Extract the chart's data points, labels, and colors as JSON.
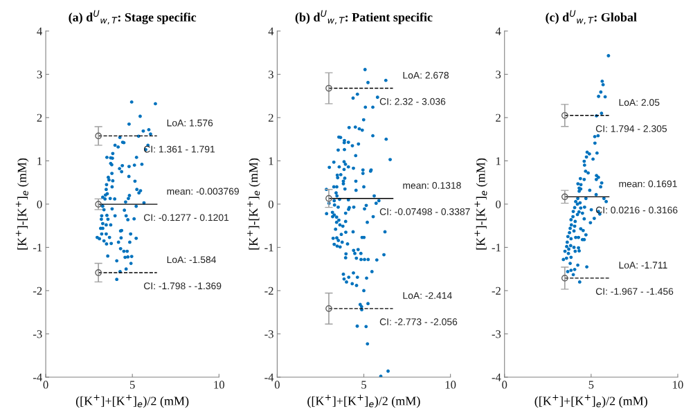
{
  "chart_data": [
    {
      "type": "scatter",
      "title": "(a) d$^{U}$$_{w,T}$: Stage specific",
      "xlabel": "([K$^{+}$]+[K$^{+}$]$_{e}$)/2 (mM)",
      "ylabel": "[K$^{+}$]-[K$^{+}$]$_{e}$ (mM)",
      "xlim": [
        0,
        10
      ],
      "xticks": [
        0,
        5,
        10
      ],
      "ylim": [
        -4,
        4
      ],
      "yticks": [
        -4,
        -3,
        -2,
        -1,
        0,
        1,
        2,
        3,
        4
      ],
      "grid": false,
      "series": [
        {
          "color": "#0072bd",
          "marker": "circle",
          "x": [
            4.96,
            6.33,
            5.45,
            4.81,
            5.63,
            5.95,
            6.05,
            5.36,
            4.28,
            4.44,
            4.51,
            4.0,
            4.18,
            5.9,
            5.77,
            3.87,
            3.53,
            3.75,
            3.85,
            5.24,
            3.75,
            3.81,
            5.55,
            5.12,
            4.81,
            4.42,
            4.26,
            4.38,
            3.82,
            4.8,
            3.61,
            3.65,
            5.15,
            3.87,
            3.51,
            3.83,
            5.26,
            3.49,
            5.47,
            5.38,
            3.55,
            3.45,
            4.83,
            3.72,
            3.98,
            3.29,
            3.42,
            4.77,
            5.67,
            4.61,
            5.22,
            3.23,
            3.36,
            3.83,
            4.54,
            4.0,
            4.64,
            3.23,
            3.53,
            4.74,
            5.1,
            3.59,
            3.29,
            3.17,
            3.49,
            3.75,
            4.38,
            4.32,
            4.9,
            3.23,
            3.49,
            3.68,
            2.97,
            3.1,
            5.22,
            4.35,
            3.36,
            4.85,
            4.2,
            3.78,
            3.51,
            4.32,
            4.51,
            4.7,
            3.58,
            4.58,
            4.96,
            4.74,
            4.1,
            4.92,
            4.64,
            4.29,
            4.1,
            3.29,
            3.21,
            3.29
          ],
          "values": [
            2.36,
            2.32,
            2.03,
            1.85,
            1.69,
            1.72,
            1.62,
            1.57,
            1.54,
            1.43,
            1.42,
            1.36,
            1.32,
            1.36,
            1.26,
            1.17,
            1.08,
            1.07,
            1.06,
            1.08,
            0.94,
            0.91,
            0.92,
            0.9,
            0.87,
            0.89,
            0.82,
            0.75,
            0.71,
            0.64,
            0.62,
            0.56,
            0.53,
            0.54,
            0.45,
            0.4,
            0.34,
            0.34,
            0.31,
            0.26,
            0.24,
            0.21,
            0.2,
            0.13,
            0.12,
            0.16,
            0.12,
            0.13,
            0.03,
            0.05,
            -0.05,
            -0.03,
            -0.13,
            -0.11,
            -0.14,
            -0.27,
            -0.27,
            -0.27,
            -0.26,
            -0.36,
            -0.34,
            -0.35,
            -0.45,
            -0.56,
            -0.48,
            -0.48,
            -0.61,
            -0.62,
            -0.69,
            -0.69,
            -0.69,
            -0.77,
            -0.77,
            -0.8,
            -0.79,
            -0.78,
            -0.85,
            -0.88,
            -0.88,
            -0.91,
            -0.92,
            -1.03,
            -1.09,
            -1.09,
            -1.2,
            -1.23,
            -1.21,
            -1.22,
            -1.31,
            -1.37,
            -1.5,
            -1.56,
            -1.74,
            -0.56,
            -0.35,
            -0.05
          ]
        },
        {
          "type": "line",
          "color": "#000000",
          "line_style": "dashed",
          "x": [
            3.04,
            6.42
          ],
          "values": [
            1.576,
            1.576
          ]
        },
        {
          "type": "line",
          "color": "#000000",
          "line_style": "solid",
          "x": [
            3.04,
            6.42
          ],
          "values": [
            -0.003769,
            -0.003769
          ]
        },
        {
          "type": "line",
          "color": "#000000",
          "line_style": "dashed",
          "x": [
            3.04,
            6.42
          ],
          "values": [
            -1.584,
            -1.584
          ]
        },
        {
          "type": "scatter",
          "color": "#606060",
          "marker": "circle",
          "x": [
            3.04,
            3.04,
            3.04
          ],
          "values": [
            1.576,
            -0.003769,
            -1.584
          ],
          "errors": [
            [
              1.361,
              1.791
            ],
            [
              -0.1277,
              0.1201
            ],
            [
              -1.798,
              -1.369
            ]
          ]
        }
      ],
      "annotations": [
        {
          "text": "LoA: 1.576",
          "x": 6.42,
          "y": 1.576
        },
        {
          "text": "CI: 1.361 - 1.791",
          "x": 6.42,
          "y": 1.576
        },
        {
          "text": "mean: -0.003769",
          "x": 6.42,
          "y": -0.003769
        },
        {
          "text": "CI: -0.1277 - 0.1201",
          "x": 6.42,
          "y": -0.003769
        },
        {
          "text": "LoA: -1.584",
          "x": 6.42,
          "y": -1.584
        },
        {
          "text": "CI: -1.798 - -1.369",
          "x": 6.42,
          "y": -1.584
        }
      ]
    },
    {
      "type": "scatter",
      "title": "(b) d$^{U}$$_{w,T}$: Patient specific",
      "xlabel": "([K$^{+}$]+[K$^{+}$]$_{e}$)/2 (mM)",
      "ylabel": "[K$^{+}$]-[K$^{+}$]$_{e}$ (mM)",
      "xlim": [
        0,
        10
      ],
      "xticks": [
        0,
        5,
        10
      ],
      "ylim": [
        -4,
        4
      ],
      "yticks": [
        -4,
        -3,
        -2,
        -1,
        0,
        1,
        2,
        3,
        4
      ],
      "grid": false,
      "series": [
        {
          "color": "#0072bd",
          "marker": "circle",
          "x": [
            5.07,
            6.27,
            5.24,
            4.63,
            4.38,
            5.79,
            5.09,
            5.52,
            4.99,
            4.15,
            4.51,
            4.74,
            4.91,
            5.52,
            3.56,
            3.66,
            6.29,
            3.88,
            4.11,
            3.87,
            4.69,
            4.34,
            3.52,
            3.88,
            6.52,
            4.53,
            3.27,
            3.01,
            3.58,
            3.86,
            3.94,
            4.11,
            4.4,
            3.86,
            4.95,
            5.42,
            4.95,
            5.39,
            3.47,
            3.67,
            3.49,
            3.9,
            4.54,
            3.82,
            3.27,
            3.44,
            3.82,
            5.0,
            4.55,
            3.91,
            2.84,
            3.4,
            3.45,
            5.6,
            3.6,
            4.11,
            5.87,
            2.99,
            5.71,
            3.29,
            5.14,
            3.31,
            3.52,
            4.16,
            4.42,
            5.04,
            4.12,
            2.85,
            3.95,
            3.19,
            5.54,
            3.2,
            3.43,
            3.29,
            3.56,
            5.2,
            3.43,
            3.95,
            3.62,
            3.79,
            3.37,
            3.96,
            4.38,
            6.22,
            3.7,
            3.23,
            3.44,
            4.9,
            5.01,
            3.53,
            3.75,
            4.06,
            3.29,
            3.46,
            3.63,
            4.41,
            4.67,
            3.97,
            4.48,
            4.83,
            6.16,
            3.95,
            4.57,
            4.84,
            5.04,
            5.25,
            5.75,
            5.47,
            3.82,
            4.4,
            4.13,
            4.63,
            5.16,
            3.86,
            4.0,
            4.33,
            4.58,
            5.0,
            4.79,
            4.87,
            5.24,
            4.88,
            4.62,
            5.13,
            5.21,
            6.4,
            5.98
          ],
          "values": [
            3.11,
            2.86,
            2.81,
            2.54,
            2.45,
            2.47,
            2.24,
            2.24,
            1.95,
            1.77,
            1.78,
            1.74,
            1.71,
            1.58,
            1.55,
            1.54,
            1.5,
            1.47,
            1.43,
            1.42,
            1.39,
            1.35,
            1.25,
            1.26,
            1.03,
            1.12,
            0.97,
            0.85,
            0.86,
            0.98,
            0.92,
            0.86,
            0.83,
            0.8,
            0.79,
            0.79,
            0.71,
            0.76,
            0.67,
            0.68,
            0.61,
            0.6,
            0.53,
            0.53,
            0.4,
            0.4,
            0.47,
            0.4,
            0.32,
            0.35,
            0.34,
            0.26,
            0.19,
            0.19,
            0.11,
            0.1,
            0.08,
            0.02,
            0.02,
            0.08,
            -0.03,
            -0.02,
            -0.07,
            -0.08,
            -0.07,
            -0.11,
            -0.12,
            -0.22,
            -0.21,
            -0.19,
            -0.29,
            -0.29,
            -0.3,
            -0.25,
            -0.37,
            -0.42,
            -0.42,
            -0.4,
            -0.48,
            -0.51,
            -0.58,
            -0.65,
            -0.64,
            -0.64,
            -0.7,
            -0.79,
            -0.78,
            -0.77,
            -0.77,
            -0.84,
            -0.88,
            -0.92,
            -0.93,
            -0.97,
            -0.99,
            -1.07,
            -1.05,
            -1.15,
            -1.14,
            -1.14,
            -1.17,
            -1.24,
            -1.25,
            -1.28,
            -1.28,
            -1.28,
            -1.29,
            -1.56,
            -1.62,
            -1.59,
            -1.69,
            -1.69,
            -1.71,
            -1.73,
            -1.8,
            -1.84,
            -1.88,
            -2.0,
            -2.32,
            -2.37,
            -2.3,
            -2.44,
            -2.82,
            -2.83,
            -3.23,
            -3.86,
            -3.98
          ]
        },
        {
          "type": "line",
          "color": "#000000",
          "line_style": "dashed",
          "x": [
            2.98,
            6.68
          ],
          "values": [
            2.678,
            2.678
          ]
        },
        {
          "type": "line",
          "color": "#000000",
          "line_style": "solid",
          "x": [
            2.98,
            6.68
          ],
          "values": [
            0.1318,
            0.1318
          ]
        },
        {
          "type": "line",
          "color": "#000000",
          "line_style": "dashed",
          "x": [
            2.98,
            6.68
          ],
          "values": [
            -2.414,
            -2.414
          ]
        },
        {
          "type": "scatter",
          "color": "#606060",
          "marker": "circle",
          "x": [
            2.98,
            2.98,
            2.98
          ],
          "values": [
            2.678,
            0.1318,
            -2.414
          ],
          "errors": [
            [
              2.32,
              3.036
            ],
            [
              -0.07498,
              0.3387
            ],
            [
              -2.773,
              -2.056
            ]
          ]
        }
      ],
      "annotations": [
        {
          "text": "LoA: 2.678",
          "x": 6.68,
          "y": 2.678
        },
        {
          "text": "CI: 2.32 - 3.036",
          "x": 6.68,
          "y": 2.678
        },
        {
          "text": "mean: 0.1318",
          "x": 6.68,
          "y": 0.1318
        },
        {
          "text": "CI: -0.07498 - 0.3387",
          "x": 6.68,
          "y": 0.1318
        },
        {
          "text": "LoA: -2.414",
          "x": 6.68,
          "y": -2.414
        },
        {
          "text": "CI: -2.773 - -2.056",
          "x": 6.68,
          "y": -2.414
        }
      ]
    },
    {
      "type": "scatter",
      "title": "(c) d$^{U}$$_{w,T}$: Global",
      "xlabel": "([K$^{+}$]+[K$^{+}$]$_{e}$)/2 (mM)",
      "ylabel": "[K$^{+}$]-[K$^{+}$]$_{e}$ (mM)",
      "xlim": [
        0,
        10
      ],
      "xticks": [
        0,
        5,
        10
      ],
      "ylim": [
        -4,
        4
      ],
      "yticks": [
        -4,
        -3,
        -2,
        -1,
        0,
        1,
        2,
        3,
        4
      ],
      "grid": false,
      "series": [
        {
          "color": "#0072bd",
          "marker": "circle",
          "x": [
            6.0,
            5.64,
            5.69,
            5.56,
            5.43,
            5.81,
            5.6,
            5.31,
            5.4,
            5.21,
            5.22,
            5.34,
            4.77,
            4.9,
            4.73,
            5.11,
            4.6,
            4.62,
            4.68,
            4.83,
            4.38,
            4.6,
            5.31,
            5.42,
            5.3,
            5.61,
            4.24,
            4.41,
            5.55,
            4.31,
            4.4,
            4.92,
            4.31,
            5.29,
            4.7,
            5.74,
            5.87,
            4.23,
            4.11,
            4.21,
            4.36,
            4.05,
            4.62,
            4.4,
            5.01,
            5.42,
            3.97,
            4.3,
            5.5,
            4.5,
            4.21,
            3.95,
            5.18,
            4.6,
            3.84,
            4.08,
            4.96,
            3.86,
            4.05,
            3.79,
            4.4,
            4.54,
            4.01,
            3.75,
            4.7,
            3.66,
            4.11,
            4.27,
            3.84,
            4.5,
            4.6,
            3.62,
            3.82,
            3.59,
            4.01,
            4.27,
            3.71,
            4.31,
            3.49,
            4.08,
            3.69,
            3.84,
            3.4,
            3.58,
            3.79,
            4.23,
            4.75,
            4.05,
            3.84,
            3.65,
            3.97,
            4.34
          ],
          "values": [
            3.43,
            2.84,
            2.76,
            2.59,
            2.49,
            2.48,
            2.1,
            2.04,
            1.58,
            1.56,
            1.41,
            1.18,
            1.2,
            1.16,
            1.09,
            1.04,
            0.99,
            0.9,
            0.76,
            0.72,
            0.59,
            0.57,
            0.66,
            0.62,
            0.57,
            0.49,
            0.47,
            0.45,
            0.4,
            0.37,
            0.35,
            0.32,
            0.3,
            0.22,
            0.13,
            0.13,
            0.06,
            0.13,
            0.06,
            0.0,
            0.03,
            -0.08,
            -0.07,
            -0.09,
            -0.13,
            -0.17,
            -0.17,
            -0.18,
            -0.23,
            -0.21,
            -0.24,
            -0.29,
            -0.33,
            -0.34,
            -0.36,
            -0.4,
            -0.43,
            -0.48,
            -0.51,
            -0.56,
            -0.57,
            -0.61,
            -0.62,
            -0.66,
            -0.71,
            -0.75,
            -0.77,
            -0.77,
            -0.8,
            -0.82,
            -0.82,
            -0.88,
            -0.96,
            -0.98,
            -1.0,
            -1.01,
            -1.04,
            -1.08,
            -1.09,
            -1.09,
            -1.14,
            -1.23,
            -1.28,
            -1.25,
            -1.37,
            -1.41,
            -1.45,
            -1.51,
            -1.53,
            -1.56,
            -1.63,
            -1.8
          ]
        },
        {
          "type": "line",
          "color": "#000000",
          "line_style": "dashed",
          "x": [
            3.48,
            6.03
          ],
          "values": [
            2.05,
            2.05
          ]
        },
        {
          "type": "line",
          "color": "#000000",
          "line_style": "solid",
          "x": [
            3.48,
            6.03
          ],
          "values": [
            0.1691,
            0.1691
          ]
        },
        {
          "type": "line",
          "color": "#000000",
          "line_style": "dashed",
          "x": [
            3.48,
            6.03
          ],
          "values": [
            -1.711,
            -1.711
          ]
        },
        {
          "type": "scatter",
          "color": "#606060",
          "marker": "circle",
          "x": [
            3.48,
            3.48,
            3.48
          ],
          "values": [
            2.05,
            0.1691,
            -1.711
          ],
          "errors": [
            [
              1.794,
              2.305
            ],
            [
              0.0216,
              0.3166
            ],
            [
              -1.967,
              -1.456
            ]
          ]
        }
      ],
      "annotations": [
        {
          "text": "LoA: 2.05",
          "x": 6.03,
          "y": 2.05
        },
        {
          "text": "CI: 1.794 - 2.305",
          "x": 6.03,
          "y": 2.05
        },
        {
          "text": "mean: 0.1691",
          "x": 6.03,
          "y": 0.1691
        },
        {
          "text": "CI: 0.0216 - 0.3166",
          "x": 6.03,
          "y": 0.1691
        },
        {
          "text": "LoA: -1.711",
          "x": 6.03,
          "y": -1.711
        },
        {
          "text": "CI: -1.967 - -1.456",
          "x": 6.03,
          "y": -1.711
        }
      ]
    }
  ]
}
